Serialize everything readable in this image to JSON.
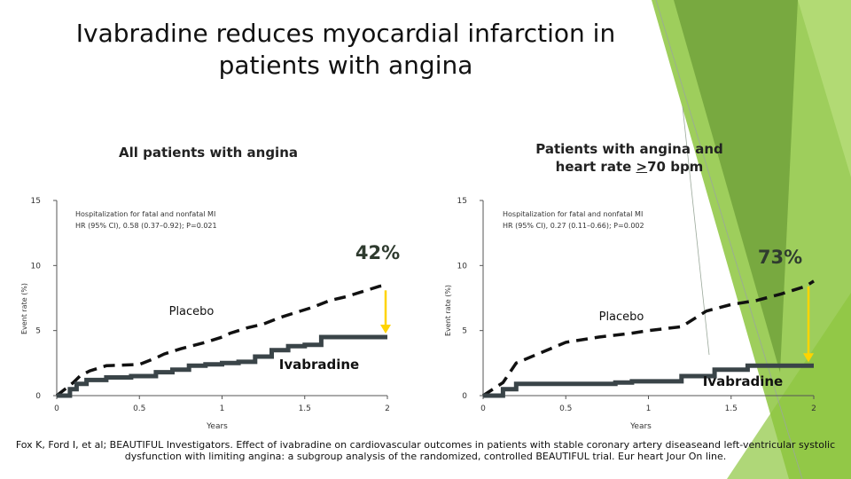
{
  "slide": {
    "title": "Ivabradine reduces myocardial infarction in patients with angina",
    "left_heading": "All patients with angina",
    "right_heading_prefix": "Patients with angina and heart rate ",
    "right_heading_ge": ">",
    "right_heading_suffix": "70 bpm",
    "citation": "Fox K, Ford I, et al; BEAUTIFUL Investigators. Effect of ivabradine on cardiovascular outcomes in patients with stable coronary artery diseaseand left-ventricular systolic dysfunction with limiting angina: a subgroup analysis of the randomized, controlled BEAUTIFUL trial. Eur heart Jour On line."
  },
  "colors": {
    "accent_green": "#8dc63f",
    "dark_green": "#5a8a2a",
    "arrow_yellow": "#ffd400",
    "ivabradine_line": "#3a4448",
    "placebo_line": "#111111",
    "pct_text": "#2f3b2f"
  },
  "chart_data": [
    {
      "type": "line",
      "title": "",
      "annotation_lines": [
        "Hospitalization for fatal and nonfatal MI",
        "HR (95% CI), 0.58 (0.37–0.92); P=0.021"
      ],
      "xlabel": "Years",
      "ylabel": "Event rate (%)",
      "xlim": [
        0,
        2
      ],
      "ylim": [
        0,
        15
      ],
      "x_ticks": [
        "0",
        "0.5",
        "1",
        "1.5",
        "2"
      ],
      "y_ticks": [
        "0",
        "5",
        "10",
        "15"
      ],
      "reduction_label": "42%",
      "series": [
        {
          "name": "Placebo",
          "style": "dashed",
          "x": [
            0.0,
            0.1,
            0.14,
            0.2,
            0.3,
            0.5,
            0.6,
            0.65,
            0.75,
            0.9,
            1.0,
            1.05,
            1.15,
            1.25,
            1.35,
            1.45,
            1.55,
            1.65,
            1.75,
            1.85,
            1.95,
            2.0
          ],
          "y": [
            0.0,
            1.0,
            1.5,
            1.9,
            2.3,
            2.4,
            2.9,
            3.2,
            3.6,
            4.1,
            4.5,
            4.8,
            5.2,
            5.5,
            6.0,
            6.4,
            6.8,
            7.3,
            7.6,
            8.0,
            8.4,
            8.5
          ]
        },
        {
          "name": "Ivabradine",
          "style": "solid",
          "x": [
            0.0,
            0.08,
            0.12,
            0.18,
            0.3,
            0.45,
            0.6,
            0.7,
            0.8,
            0.9,
            1.0,
            1.1,
            1.2,
            1.3,
            1.4,
            1.5,
            1.6,
            2.0
          ],
          "y": [
            0.0,
            0.5,
            0.9,
            1.2,
            1.4,
            1.5,
            1.8,
            2.0,
            2.3,
            2.4,
            2.5,
            2.6,
            3.0,
            3.5,
            3.8,
            3.9,
            4.5,
            4.5
          ]
        }
      ]
    },
    {
      "type": "line",
      "title": "",
      "annotation_lines": [
        "Hospitalization for fatal and nonfatal MI",
        "HR (95% CI), 0.27 (0.11–0.66); P=0.002"
      ],
      "xlabel": "Years",
      "ylabel": "Event rate (%)",
      "xlim": [
        0,
        2
      ],
      "ylim": [
        0,
        15
      ],
      "x_ticks": [
        "0",
        "0.5",
        "1",
        "1.5",
        "2"
      ],
      "y_ticks": [
        "0",
        "5",
        "10",
        "15"
      ],
      "reduction_label": "73%",
      "series": [
        {
          "name": "Placebo",
          "style": "dashed",
          "x": [
            0.0,
            0.12,
            0.2,
            0.35,
            0.5,
            0.7,
            0.9,
            1.0,
            1.2,
            1.35,
            1.5,
            1.65,
            1.8,
            1.95,
            2.0
          ],
          "y": [
            0.0,
            1.0,
            2.5,
            3.3,
            4.1,
            4.5,
            4.8,
            5.0,
            5.3,
            6.5,
            7.0,
            7.3,
            7.8,
            8.4,
            8.8
          ]
        },
        {
          "name": "Ivabradine",
          "style": "solid",
          "x": [
            0.0,
            0.12,
            0.2,
            0.4,
            0.6,
            0.8,
            0.9,
            1.0,
            1.2,
            1.4,
            1.6,
            2.0
          ],
          "y": [
            0.0,
            0.5,
            0.9,
            0.9,
            0.9,
            1.0,
            1.1,
            1.1,
            1.5,
            2.0,
            2.3,
            2.3
          ]
        }
      ]
    }
  ]
}
